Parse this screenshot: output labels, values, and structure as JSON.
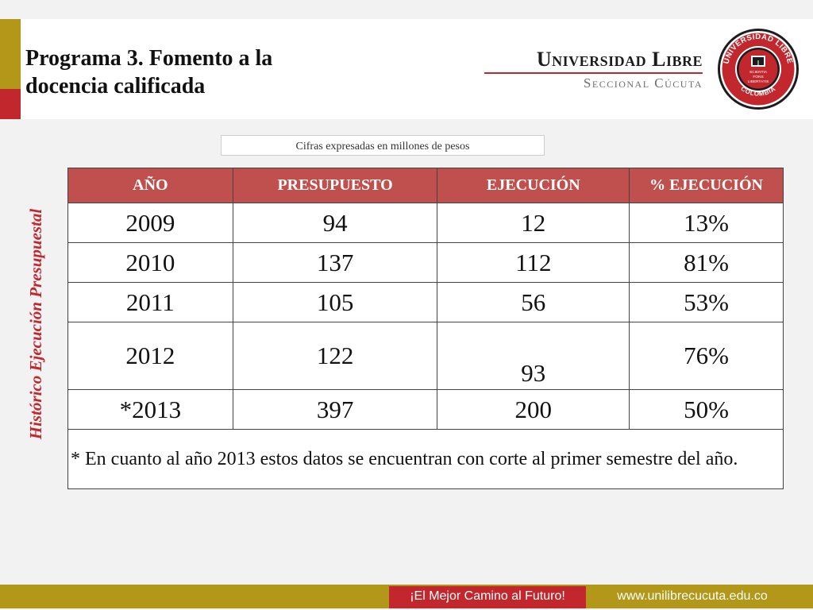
{
  "slide": {
    "title_line1": "Programa 3. Fomento a la",
    "title_line2": "docencia calificada",
    "side_label": "Histórico Ejecución Presupuestal",
    "caption": "Cifras expresadas en millones de pesos"
  },
  "brand": {
    "name": "Universidad Libre",
    "sub": "Seccional Cúcuta",
    "seal_top_text": "UNIVERSIDAD LIBRE",
    "seal_bottom_text": "COLOMBIA",
    "seal_inner_left": "SCIENTIA",
    "seal_inner_center": "FONS",
    "seal_inner_right": "LIBERTATIS"
  },
  "table": {
    "headers": [
      "AÑO",
      "PRESUPUESTO",
      "EJECUCIÓN",
      "% EJECUCIÓN"
    ],
    "rows": [
      [
        "2009",
        "94",
        "12",
        "13%"
      ],
      [
        "2010",
        "137",
        "112",
        "81%"
      ],
      [
        "2011",
        "105",
        "56",
        "53%"
      ],
      [
        "2012",
        "122",
        "93",
        "76%"
      ],
      [
        "*2013",
        "397",
        "200",
        "50%"
      ]
    ],
    "note": "* En cuanto al año 2013 estos datos se encuentran con corte al primer semestre del año."
  },
  "footer": {
    "slogan": "¡El Mejor Camino al Futuro!",
    "url": "www.unilibrecucuta.edu.co"
  },
  "colors": {
    "accent_red": "#c1272d",
    "accent_gold": "#b39718",
    "header_row": "#c0504d"
  }
}
